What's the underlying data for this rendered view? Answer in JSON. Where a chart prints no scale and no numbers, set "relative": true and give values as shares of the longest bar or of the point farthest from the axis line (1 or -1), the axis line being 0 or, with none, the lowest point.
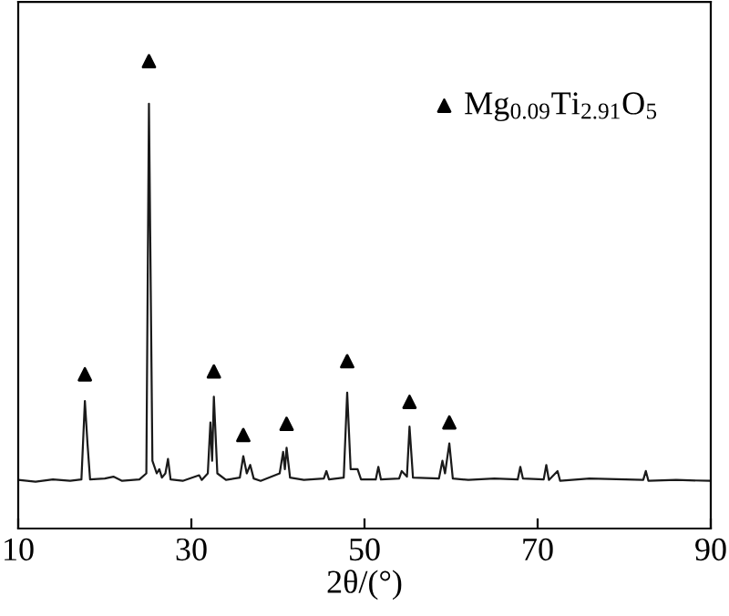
{
  "chart_data": {
    "type": "line",
    "relative": true,
    "xlabel": "2θ/(°)",
    "xlim": [
      10,
      90
    ],
    "xticks": [
      10,
      30,
      50,
      70,
      90
    ],
    "tick_labels": "x",
    "grid": false,
    "legend": "top right",
    "series": [
      {
        "color": "#1a1a1a",
        "marker": "none",
        "line_style": "solid",
        "x": [
          10,
          12,
          14,
          16,
          17.3,
          17.7,
          18.0,
          18.3,
          20,
          21,
          22,
          24,
          24.8,
          25.1,
          25.5,
          26.0,
          26.3,
          26.6,
          27.0,
          27.3,
          27.6,
          29,
          30.9,
          31.2,
          31.9,
          32.2,
          32.4,
          32.6,
          33.0,
          34,
          35.6,
          36.0,
          36.4,
          36.8,
          37.2,
          38,
          40.2,
          40.6,
          40.8,
          41.0,
          41.4,
          43,
          45.3,
          45.6,
          45.9,
          47.6,
          48.0,
          48.4,
          49.2,
          49.6,
          51.3,
          51.6,
          51.9,
          54.0,
          54.3,
          54.9,
          55.2,
          55.6,
          58.6,
          59.0,
          59.3,
          59.8,
          60.2,
          62,
          65,
          67.7,
          68.0,
          68.3,
          70.7,
          71.0,
          71.3,
          72.3,
          72.6,
          76,
          82.2,
          82.5,
          82.8,
          86,
          89.8
        ],
        "values": [
          0.104,
          0.1,
          0.105,
          0.102,
          0.105,
          0.273,
          0.182,
          0.105,
          0.107,
          0.111,
          0.102,
          0.105,
          0.118,
          0.909,
          0.145,
          0.118,
          0.127,
          0.109,
          0.118,
          0.149,
          0.105,
          0.102,
          0.114,
          0.104,
          0.118,
          0.227,
          0.145,
          0.282,
          0.118,
          0.104,
          0.109,
          0.155,
          0.118,
          0.136,
          0.107,
          0.102,
          0.118,
          0.164,
          0.127,
          0.173,
          0.109,
          0.104,
          0.107,
          0.123,
          0.105,
          0.109,
          0.291,
          0.127,
          0.127,
          0.105,
          0.105,
          0.132,
          0.105,
          0.107,
          0.123,
          0.111,
          0.218,
          0.109,
          0.107,
          0.145,
          0.118,
          0.182,
          0.107,
          0.104,
          0.107,
          0.105,
          0.132,
          0.107,
          0.105,
          0.136,
          0.104,
          0.123,
          0.102,
          0.107,
          0.104,
          0.123,
          0.102,
          0.104,
          0.102
        ]
      },
      {
        "type": "scatter",
        "name": "Mg$_{0.09}$Ti$_{2.91}$O$_{5}$",
        "color": "#000000",
        "marker": "triangle",
        "x": [
          17.7,
          25.1,
          32.6,
          36.0,
          41.0,
          48.0,
          55.2,
          59.8
        ],
        "values": [
          0.33,
          1,
          0.336,
          0.2,
          0.224,
          0.358,
          0.271,
          0.227
        ]
      }
    ]
  }
}
